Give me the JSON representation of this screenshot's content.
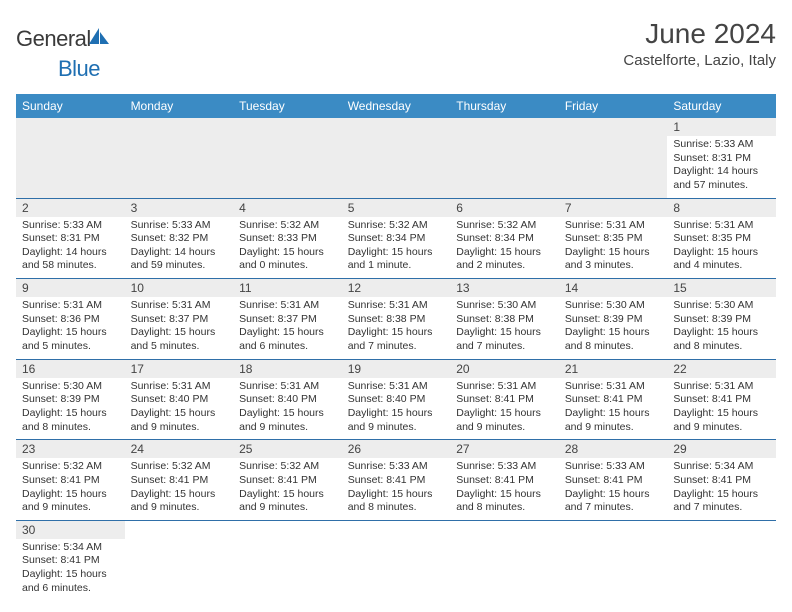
{
  "logo": {
    "part1": "General",
    "part2": "Blue"
  },
  "title": "June 2024",
  "location": "Castelforte, Lazio, Italy",
  "colors": {
    "header_bg": "#3b8bc4",
    "header_fg": "#ffffff",
    "row_border": "#2f6fa8",
    "daynum_bg": "#ededed",
    "logo_blue": "#1f6fb2"
  },
  "day_headers": [
    "Sunday",
    "Monday",
    "Tuesday",
    "Wednesday",
    "Thursday",
    "Friday",
    "Saturday"
  ],
  "weeks": [
    [
      null,
      null,
      null,
      null,
      null,
      null,
      {
        "n": "1",
        "sr": "Sunrise: 5:33 AM",
        "ss": "Sunset: 8:31 PM",
        "dl": "Daylight: 14 hours and 57 minutes."
      }
    ],
    [
      {
        "n": "2",
        "sr": "Sunrise: 5:33 AM",
        "ss": "Sunset: 8:31 PM",
        "dl": "Daylight: 14 hours and 58 minutes."
      },
      {
        "n": "3",
        "sr": "Sunrise: 5:33 AM",
        "ss": "Sunset: 8:32 PM",
        "dl": "Daylight: 14 hours and 59 minutes."
      },
      {
        "n": "4",
        "sr": "Sunrise: 5:32 AM",
        "ss": "Sunset: 8:33 PM",
        "dl": "Daylight: 15 hours and 0 minutes."
      },
      {
        "n": "5",
        "sr": "Sunrise: 5:32 AM",
        "ss": "Sunset: 8:34 PM",
        "dl": "Daylight: 15 hours and 1 minute."
      },
      {
        "n": "6",
        "sr": "Sunrise: 5:32 AM",
        "ss": "Sunset: 8:34 PM",
        "dl": "Daylight: 15 hours and 2 minutes."
      },
      {
        "n": "7",
        "sr": "Sunrise: 5:31 AM",
        "ss": "Sunset: 8:35 PM",
        "dl": "Daylight: 15 hours and 3 minutes."
      },
      {
        "n": "8",
        "sr": "Sunrise: 5:31 AM",
        "ss": "Sunset: 8:35 PM",
        "dl": "Daylight: 15 hours and 4 minutes."
      }
    ],
    [
      {
        "n": "9",
        "sr": "Sunrise: 5:31 AM",
        "ss": "Sunset: 8:36 PM",
        "dl": "Daylight: 15 hours and 5 minutes."
      },
      {
        "n": "10",
        "sr": "Sunrise: 5:31 AM",
        "ss": "Sunset: 8:37 PM",
        "dl": "Daylight: 15 hours and 5 minutes."
      },
      {
        "n": "11",
        "sr": "Sunrise: 5:31 AM",
        "ss": "Sunset: 8:37 PM",
        "dl": "Daylight: 15 hours and 6 minutes."
      },
      {
        "n": "12",
        "sr": "Sunrise: 5:31 AM",
        "ss": "Sunset: 8:38 PM",
        "dl": "Daylight: 15 hours and 7 minutes."
      },
      {
        "n": "13",
        "sr": "Sunrise: 5:30 AM",
        "ss": "Sunset: 8:38 PM",
        "dl": "Daylight: 15 hours and 7 minutes."
      },
      {
        "n": "14",
        "sr": "Sunrise: 5:30 AM",
        "ss": "Sunset: 8:39 PM",
        "dl": "Daylight: 15 hours and 8 minutes."
      },
      {
        "n": "15",
        "sr": "Sunrise: 5:30 AM",
        "ss": "Sunset: 8:39 PM",
        "dl": "Daylight: 15 hours and 8 minutes."
      }
    ],
    [
      {
        "n": "16",
        "sr": "Sunrise: 5:30 AM",
        "ss": "Sunset: 8:39 PM",
        "dl": "Daylight: 15 hours and 8 minutes."
      },
      {
        "n": "17",
        "sr": "Sunrise: 5:31 AM",
        "ss": "Sunset: 8:40 PM",
        "dl": "Daylight: 15 hours and 9 minutes."
      },
      {
        "n": "18",
        "sr": "Sunrise: 5:31 AM",
        "ss": "Sunset: 8:40 PM",
        "dl": "Daylight: 15 hours and 9 minutes."
      },
      {
        "n": "19",
        "sr": "Sunrise: 5:31 AM",
        "ss": "Sunset: 8:40 PM",
        "dl": "Daylight: 15 hours and 9 minutes."
      },
      {
        "n": "20",
        "sr": "Sunrise: 5:31 AM",
        "ss": "Sunset: 8:41 PM",
        "dl": "Daylight: 15 hours and 9 minutes."
      },
      {
        "n": "21",
        "sr": "Sunrise: 5:31 AM",
        "ss": "Sunset: 8:41 PM",
        "dl": "Daylight: 15 hours and 9 minutes."
      },
      {
        "n": "22",
        "sr": "Sunrise: 5:31 AM",
        "ss": "Sunset: 8:41 PM",
        "dl": "Daylight: 15 hours and 9 minutes."
      }
    ],
    [
      {
        "n": "23",
        "sr": "Sunrise: 5:32 AM",
        "ss": "Sunset: 8:41 PM",
        "dl": "Daylight: 15 hours and 9 minutes."
      },
      {
        "n": "24",
        "sr": "Sunrise: 5:32 AM",
        "ss": "Sunset: 8:41 PM",
        "dl": "Daylight: 15 hours and 9 minutes."
      },
      {
        "n": "25",
        "sr": "Sunrise: 5:32 AM",
        "ss": "Sunset: 8:41 PM",
        "dl": "Daylight: 15 hours and 9 minutes."
      },
      {
        "n": "26",
        "sr": "Sunrise: 5:33 AM",
        "ss": "Sunset: 8:41 PM",
        "dl": "Daylight: 15 hours and 8 minutes."
      },
      {
        "n": "27",
        "sr": "Sunrise: 5:33 AM",
        "ss": "Sunset: 8:41 PM",
        "dl": "Daylight: 15 hours and 8 minutes."
      },
      {
        "n": "28",
        "sr": "Sunrise: 5:33 AM",
        "ss": "Sunset: 8:41 PM",
        "dl": "Daylight: 15 hours and 7 minutes."
      },
      {
        "n": "29",
        "sr": "Sunrise: 5:34 AM",
        "ss": "Sunset: 8:41 PM",
        "dl": "Daylight: 15 hours and 7 minutes."
      }
    ],
    [
      {
        "n": "30",
        "sr": "Sunrise: 5:34 AM",
        "ss": "Sunset: 8:41 PM",
        "dl": "Daylight: 15 hours and 6 minutes."
      },
      null,
      null,
      null,
      null,
      null,
      null
    ]
  ]
}
